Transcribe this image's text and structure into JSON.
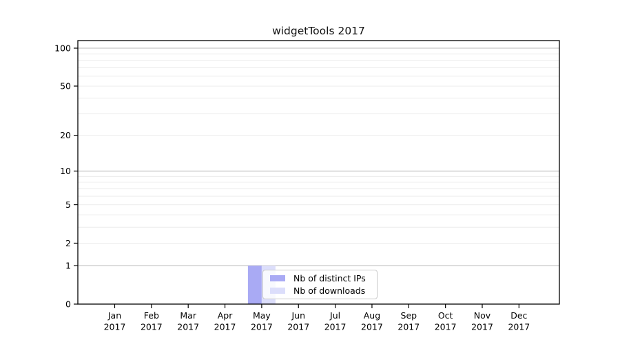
{
  "chart_data": {
    "type": "bar",
    "title": "widgetTools 2017",
    "x": {
      "categories": [
        "Jan",
        "Feb",
        "Mar",
        "Apr",
        "May",
        "Jun",
        "Jul",
        "Aug",
        "Sep",
        "Oct",
        "Nov",
        "Dec"
      ],
      "sub_label": "2017"
    },
    "series": [
      {
        "name": "Nb of distinct IPs",
        "color": "#a9aaf4",
        "values": [
          0,
          0,
          0,
          0,
          1,
          0,
          0,
          0,
          0,
          0,
          0,
          0
        ]
      },
      {
        "name": "Nb of downloads",
        "color": "#dcdefb",
        "values": [
          0,
          0,
          0,
          0,
          1,
          0,
          0,
          0,
          0,
          0,
          0,
          0
        ]
      }
    ],
    "y_axis": {
      "scale": "log1p",
      "tick_values": [
        0,
        1,
        2,
        5,
        10,
        20,
        50,
        100
      ],
      "major_grid_values": [
        1,
        10,
        100
      ],
      "minor_grid_values": [
        2,
        3,
        4,
        5,
        6,
        7,
        8,
        9,
        20,
        30,
        40,
        50,
        60,
        70,
        80,
        90
      ],
      "range": [
        0,
        100
      ]
    },
    "grid": "on",
    "legend_position": "inside-bottom-center",
    "colors": {
      "major_grid": "#c6c6c6",
      "minor_grid": "#ececec",
      "axis": "#000000",
      "text": "#000000",
      "background": "#ffffff"
    }
  }
}
